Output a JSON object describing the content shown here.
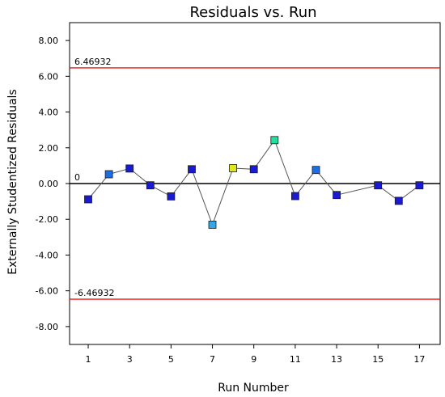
{
  "chart_data": {
    "type": "scatter",
    "title": "Residuals vs. Run",
    "xlabel": "Run Number",
    "ylabel": "Externally Studentized Residuals",
    "xlim": [
      0.1,
      18.0
    ],
    "ylim": [
      -9.0,
      9.0
    ],
    "x_ticks": [
      "1",
      "3",
      "5",
      "7",
      "9",
      "11",
      "13",
      "15",
      "17"
    ],
    "y_ticks": [
      "8.00",
      "6.00",
      "4.00",
      "2.00",
      "0.00",
      "-2.00",
      "-4.00",
      "-6.00",
      "-8.00"
    ],
    "grid": false,
    "legend": false,
    "reference_lines": [
      {
        "label": "6.46932",
        "value": 6.46932,
        "color": "#e01b1b"
      },
      {
        "label": "0",
        "value": 0,
        "color": "#000000"
      },
      {
        "label": "-6.46932",
        "value": -6.46932,
        "color": "#e01b1b"
      }
    ],
    "series": [
      {
        "x": [
          1,
          2,
          3,
          4,
          5,
          6,
          7,
          8,
          9,
          10,
          11,
          12,
          13,
          15,
          16,
          17
        ],
        "y": [
          -0.88,
          0.52,
          0.84,
          -0.1,
          -0.72,
          0.8,
          -2.3,
          0.86,
          0.8,
          2.43,
          -0.7,
          0.76,
          -0.64,
          -0.1,
          -0.97,
          -0.1
        ],
        "colors": [
          "#1a1ad4",
          "#1a6ee6",
          "#1a1ad4",
          "#1a1ad4",
          "#1a1ad4",
          "#1a1ad4",
          "#33a8e8",
          "#dfe81a",
          "#1a1ad4",
          "#21e0a0",
          "#1a1ad4",
          "#1a6ee6",
          "#1a1ad4",
          "#1a1ad4",
          "#1a1ad4",
          "#1a1ad4"
        ]
      }
    ]
  }
}
